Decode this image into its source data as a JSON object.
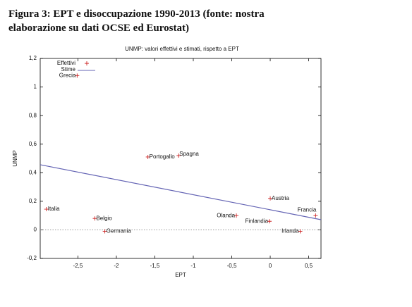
{
  "caption": [
    "Figura 3: EPT e disoccupazione 1990-2013 (fonte: nostra",
    "elaborazione su dati OCSE ed Eurostat)"
  ],
  "chart_data": {
    "type": "scatter",
    "title": "UNMP: valori effettivi e stimati, rispetto a EPT",
    "x_label": "EPT",
    "y_label": "UNMP",
    "xlim": [
      -2.99,
      0.66
    ],
    "ylim": [
      -0.2,
      1.2
    ],
    "xticks": [
      {
        "value": -2.5,
        "label": "-2,5"
      },
      -2,
      {
        "value": -1.5,
        "label": "-1,5"
      },
      -1,
      {
        "value": -0.5,
        "label": "-0,5"
      },
      0,
      {
        "value": 0.5,
        "label": "0,5"
      }
    ],
    "yticks": [
      {
        "value": -0.2,
        "label": "-0,2"
      },
      0,
      {
        "value": 0.2,
        "label": "0,2"
      },
      {
        "value": 0.4,
        "label": "0,4"
      },
      {
        "value": 0.6,
        "label": "0,6"
      },
      {
        "value": 0.8,
        "label": "0,8"
      },
      1,
      {
        "value": 1.2,
        "label": "1,2"
      }
    ],
    "zero_line": true,
    "legend": "top-left",
    "series": [
      {
        "name": "Effettivi",
        "kind": "points",
        "color": "#cc2222",
        "labels": [
          "Grecia",
          "Portogallo",
          "Spagna",
          "Italia",
          "Belgio",
          "Germania",
          "Olanda",
          "Austria",
          "Finlandia",
          "Francia",
          "Irlanda"
        ],
        "x": [
          -2.51,
          -1.59,
          -1.19,
          -2.91,
          -2.28,
          -2.15,
          -0.44,
          0,
          -0.01,
          0.59,
          0.39
        ],
        "values": [
          1.08,
          0.51,
          0.52,
          0.145,
          0.08,
          -0.01,
          0.1,
          0.22,
          0.06,
          0.1,
          -0.01
        ]
      },
      {
        "name": "Stime",
        "kind": "line",
        "color": "#6464b4",
        "x": [
          -2.99,
          0.66
        ],
        "values": [
          0.456,
          0.071
        ]
      }
    ]
  }
}
